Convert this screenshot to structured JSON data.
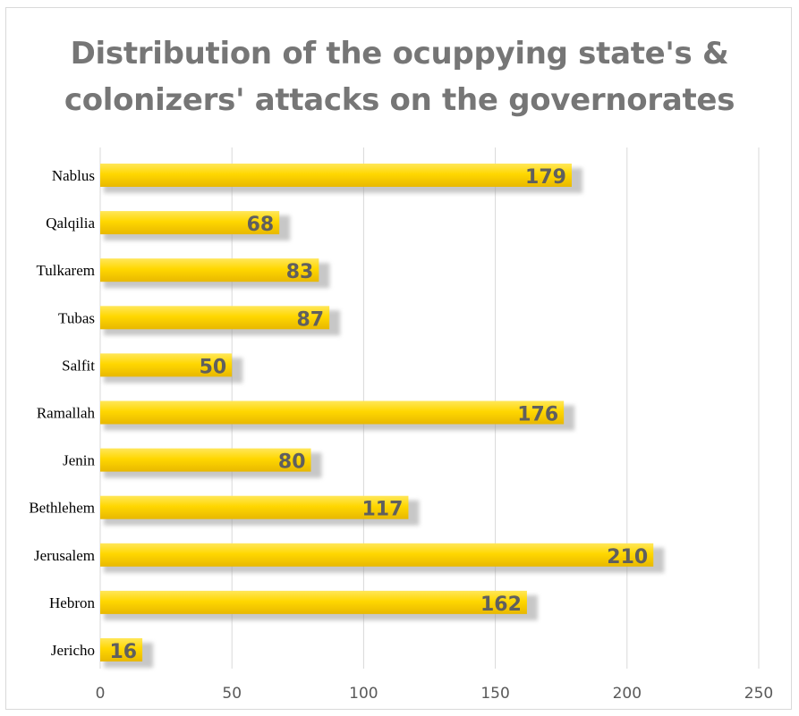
{
  "chart_data": {
    "type": "bar",
    "orientation": "horizontal",
    "title_lines": [
      "Distribution of the ocuppying state's &",
      "colonizers' attacks on the governorates"
    ],
    "categories": [
      "Nablus",
      "Qalqilia",
      "Tulkarem",
      "Tubas",
      "Salfit",
      "Ramallah",
      "Jenin",
      "Bethlehem",
      "Jerusalem",
      "Hebron",
      "Jericho"
    ],
    "values": [
      179,
      68,
      83,
      87,
      50,
      176,
      80,
      117,
      210,
      162,
      16
    ],
    "xlim": [
      0,
      250
    ],
    "xticks": [
      0,
      50,
      100,
      150,
      200,
      250
    ],
    "grid": true,
    "data_labels": true,
    "legend": "none",
    "colors": {
      "bar": "#ffd700",
      "bar_dark": "#e8b800",
      "gridline": "#d9d9d9",
      "title": "#767676",
      "data_label": "#5f5f5f"
    }
  }
}
